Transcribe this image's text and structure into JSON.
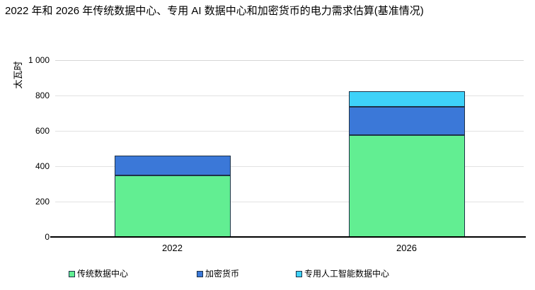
{
  "chart_data": {
    "type": "bar",
    "stacked": true,
    "title": "2022 年和 2026 年传统数据中心、专用 AI 数据中心和加密货币的电力需求估算(基准情况)",
    "ylabel": "太瓦时",
    "xlabel": "",
    "categories": [
      "2022",
      "2026"
    ],
    "series": [
      {
        "name": "传统数据中心",
        "color": "#62ee92",
        "values": [
          350,
          575
        ]
      },
      {
        "name": "加密货币",
        "color": "#3b78d8",
        "values": [
          110,
          160
        ]
      },
      {
        "name": "专用人工智能数据中心",
        "color": "#3ed2f9",
        "values": [
          0,
          90
        ]
      }
    ],
    "totals": [
      460,
      825
    ],
    "ylim": [
      0,
      1000
    ],
    "yticks": [
      {
        "value": 0,
        "label": "0"
      },
      {
        "value": 200,
        "label": "200"
      },
      {
        "value": 400,
        "label": "400"
      },
      {
        "value": 600,
        "label": "600"
      },
      {
        "value": 800,
        "label": "800"
      },
      {
        "value": 1000,
        "label": "1 000"
      }
    ],
    "grid": true,
    "legend_position": "bottom",
    "border_color": "#1e3248",
    "gridline_color": "#e2e2e2",
    "baseline_color": "#000000"
  }
}
